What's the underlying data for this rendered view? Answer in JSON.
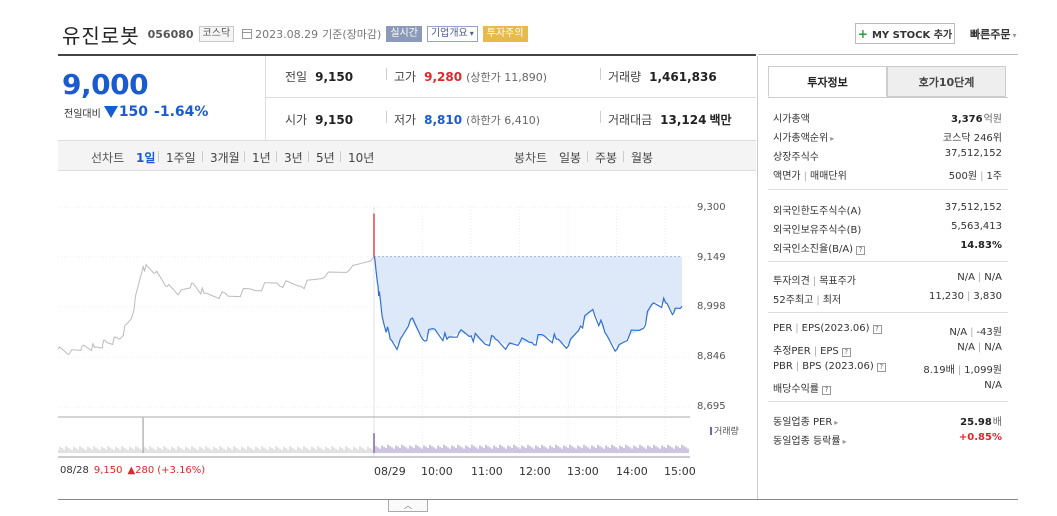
{
  "header": {
    "name": "유진로봇",
    "code": "056080",
    "market_tag": "코스닥",
    "date": "2023.08.29",
    "date_suffix": "기준(장마감)",
    "live_tag": "실시간",
    "company_tag": "기업개요",
    "company_caret": "▾",
    "warn_tag": "투자주의",
    "mystock_label": "MY STOCK 추가",
    "mystock_plus": "+",
    "quickorder_label": "빠른주문",
    "quickorder_caret": "▾"
  },
  "quote": {
    "price": "9,000",
    "change_label": "전일대비",
    "change_value": "150",
    "change_pct": "-1.64%",
    "prev_label": "전일",
    "prev_value": "9,150",
    "high_label": "고가",
    "high_value": "9,280",
    "upper_limit": "(상한가 11,890)",
    "volume_label": "거래량",
    "volume_value": "1,461,836",
    "open_label": "시가",
    "open_value": "9,150",
    "low_label": "저가",
    "low_value": "8,810",
    "lower_limit": "(하한가 6,410)",
    "amount_label": "거래대금",
    "amount_value": "13,124",
    "amount_unit": "백만"
  },
  "periodbar": {
    "line_label": "선차트",
    "line_periods": [
      "1일",
      "1주일",
      "3개월",
      "1년",
      "3년",
      "5년",
      "10년"
    ],
    "candle_label": "봉차트",
    "candle_periods": [
      "일봉",
      "주봉",
      "월봉"
    ]
  },
  "chart": {
    "prev_date": "08/28",
    "prev_close": "9,150",
    "prev_change": "▲280",
    "prev_pct": "(+3.16%)",
    "volume_label": "거래량",
    "collapse_icon": "︿"
  },
  "chart_data": {
    "type": "line",
    "title": "",
    "y_ticks": [
      "9,300",
      "9,149",
      "8,998",
      "8,846",
      "8,695"
    ],
    "x_ticks": [
      "08/29",
      "10:00",
      "11:00",
      "12:00",
      "13:00",
      "14:00",
      "15:00"
    ],
    "ylim": [
      8695,
      9300
    ],
    "previous_close": 9150,
    "series": [
      {
        "name": "",
        "color": "#bbbbbb",
        "x": [
          "08/28 09:00",
          "08/28 09:15",
          "08/28 09:30",
          "08/28 09:45",
          "08/28 10:00",
          "08/28 10:15",
          "08/28 10:30",
          "08/28 10:45",
          "08/28 11:00",
          "08/28 11:15",
          "08/28 11:30",
          "08/28 11:45",
          "08/28 12:00",
          "08/28 12:30",
          "08/28 13:00",
          "08/28 13:30",
          "08/28 14:00",
          "08/28 14:30",
          "08/28 15:00",
          "08/28 15:30"
        ],
        "values": [
          8870,
          8860,
          8880,
          8875,
          8890,
          8900,
          8960,
          9120,
          9100,
          9060,
          9040,
          9070,
          9040,
          9030,
          9050,
          9070,
          9060,
          9090,
          9110,
          9150
        ]
      },
      {
        "name": "",
        "color": "#2f6fd6",
        "x": [
          "09:00",
          "09:05",
          "09:10",
          "09:20",
          "09:30",
          "09:45",
          "10:00",
          "10:15",
          "10:30",
          "10:45",
          "11:00",
          "11:15",
          "11:30",
          "11:45",
          "12:00",
          "12:15",
          "12:30",
          "12:45",
          "13:00",
          "13:15",
          "13:30",
          "13:45",
          "14:00",
          "14:15",
          "14:30",
          "14:45",
          "15:00",
          "15:10",
          "15:20"
        ],
        "values": [
          9150,
          9060,
          8970,
          8900,
          8880,
          8960,
          8900,
          8930,
          8900,
          8920,
          8910,
          8890,
          8900,
          8880,
          8890,
          8890,
          8910,
          8900,
          8880,
          8940,
          8990,
          8920,
          8870,
          8910,
          8930,
          9010,
          9010,
          8980,
          9000
        ]
      }
    ],
    "volume": {
      "x_start": "08/28 09:00",
      "x_end": "08/29 15:30",
      "spikes": [
        {
          "x": "08/28 10:45",
          "value": 1.0
        },
        {
          "x": "08/29 09:00",
          "value": 0.55
        }
      ]
    },
    "colors": {
      "up": "#e0262b",
      "down": "#1a5bd1",
      "fill": "#dde8f8"
    }
  },
  "panel": {
    "tab_info": "투자정보",
    "tab_asks": "호가10단계",
    "rows": [
      {
        "k": "시가총액",
        "v": "3,376",
        "u": "억원"
      },
      {
        "k": "시가총액순위",
        "v": "코스닥 246위"
      },
      {
        "k": "상장주식수",
        "v": "37,512,152"
      },
      {
        "k": "액면가",
        "k2": "매매단위",
        "v": "500원",
        "v2": "1주"
      },
      {
        "k": "외국인한도주식수(A)",
        "v": "37,512,152"
      },
      {
        "k": "외국인보유주식수(B)",
        "v": "5,563,413"
      },
      {
        "k": "외국인소진율(B/A)",
        "v": "14.83%"
      },
      {
        "k": "투자의견",
        "k2": "목표주가",
        "v": "N/A",
        "v2": "N/A"
      },
      {
        "k": "52주최고",
        "k2": "최저",
        "v": "11,230",
        "v2": "3,830"
      },
      {
        "k": "PER",
        "k2": "EPS(2023.06)",
        "v": "N/A",
        "v2": "-43원"
      },
      {
        "k": "추정PER",
        "k2": "EPS",
        "v": "N/A",
        "v2": "N/A"
      },
      {
        "k": "PBR",
        "k2": "BPS (2023.06)",
        "v": "8.19배",
        "v2": "1,099원"
      },
      {
        "k": "배당수익률",
        "v": "N/A"
      },
      {
        "k": "동일업종 PER",
        "v": "25.98",
        "u": "배"
      },
      {
        "k": "동일업종 등락률",
        "v": "+0.85%"
      }
    ],
    "help_icon": "?",
    "more_icon": "▸",
    "sep": "|"
  }
}
